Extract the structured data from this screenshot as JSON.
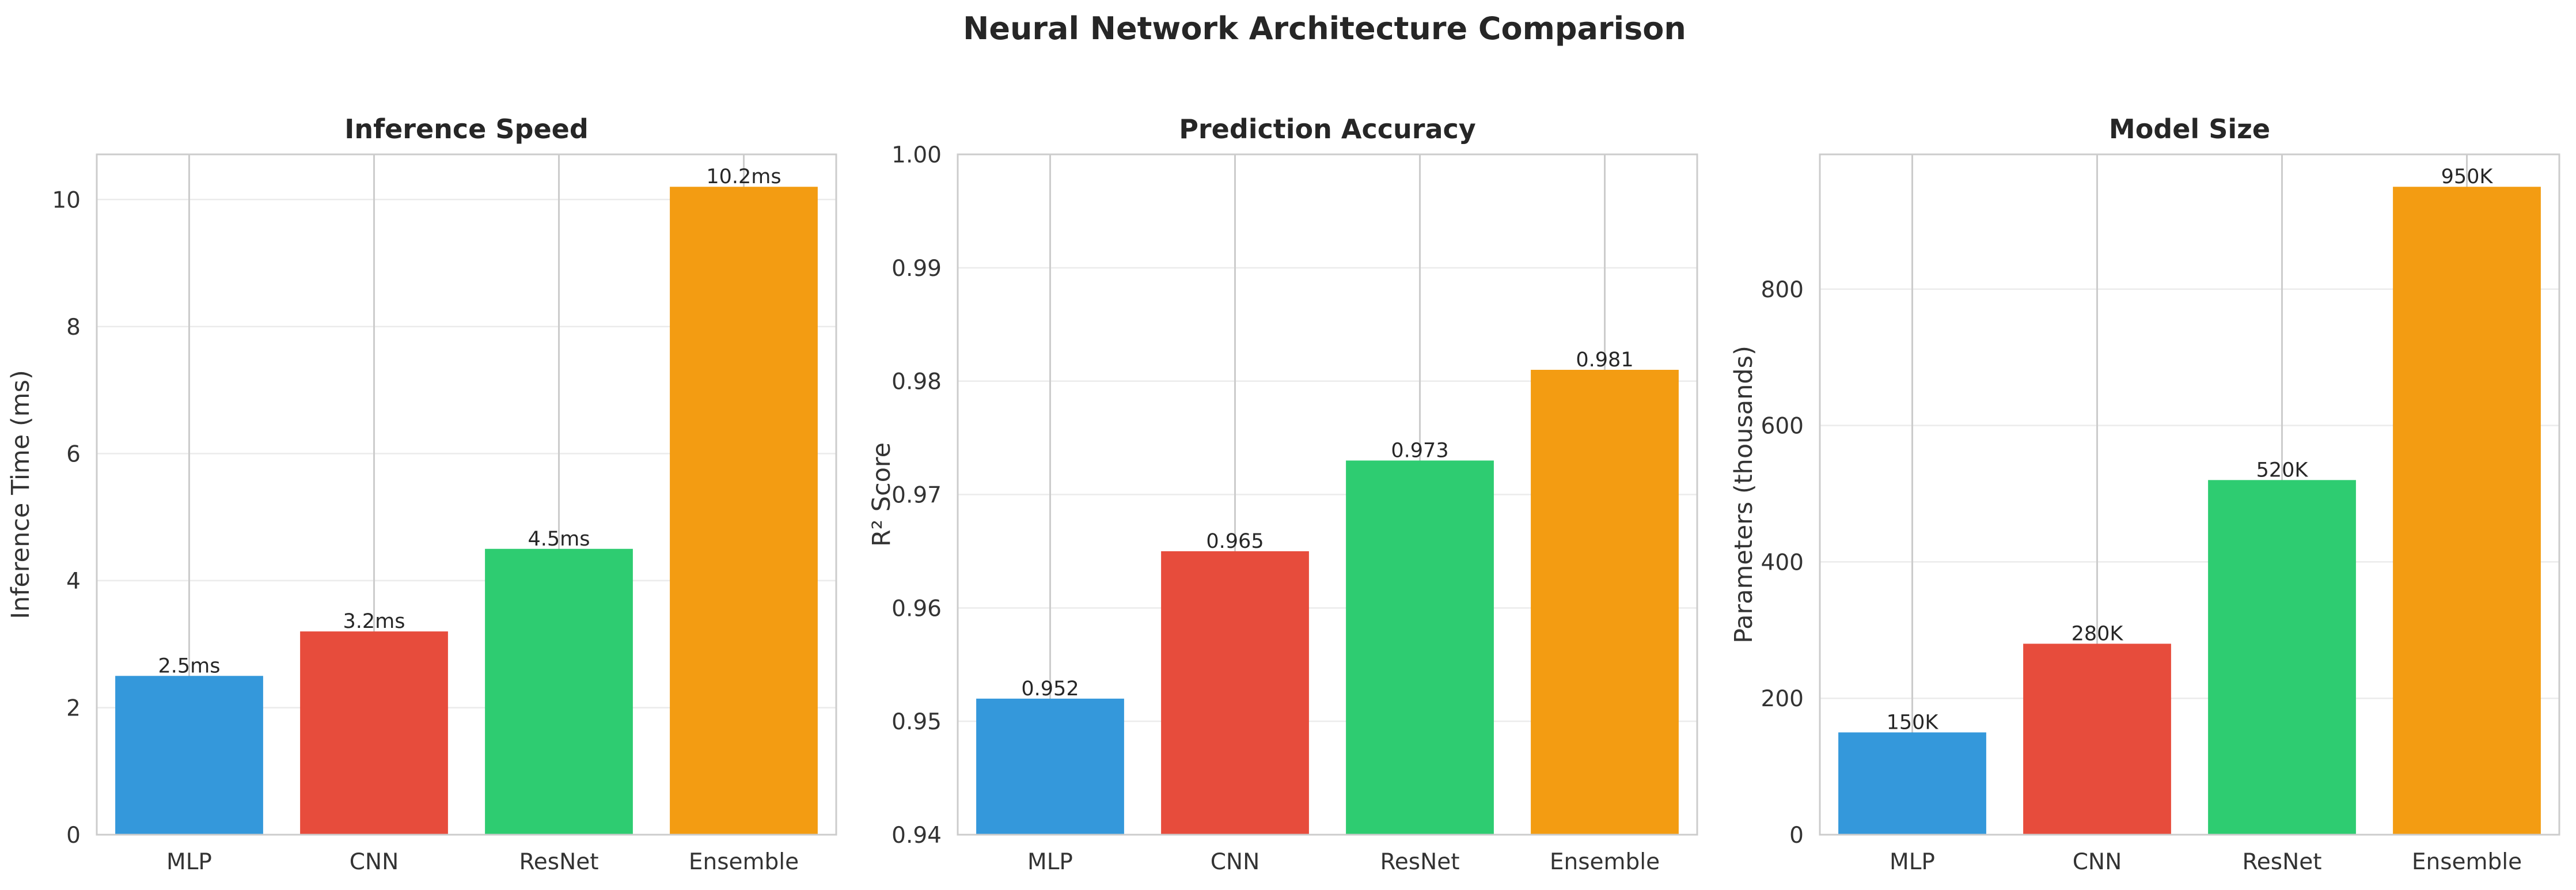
{
  "figure": {
    "suptitle": "Neural Network Architecture Comparison"
  },
  "chart_data": [
    {
      "type": "bar",
      "title": "Inference Speed",
      "xlabel": "",
      "ylabel": "Inference Time (ms)",
      "categories": [
        "MLP",
        "CNN",
        "ResNet",
        "Ensemble"
      ],
      "values": [
        2.5,
        3.2,
        4.5,
        10.2
      ],
      "value_labels": [
        "2.5ms",
        "3.2ms",
        "4.5ms",
        "10.2ms"
      ],
      "colors": [
        "#3498db",
        "#e74c3c",
        "#2ecc71",
        "#f39c12"
      ],
      "ylim": [
        0,
        10.71
      ],
      "yticks": [
        0,
        2,
        4,
        6,
        8,
        10
      ],
      "ytick_labels": [
        "0",
        "2",
        "4",
        "6",
        "8",
        "10"
      ],
      "grid": true
    },
    {
      "type": "bar",
      "title": "Prediction Accuracy",
      "xlabel": "",
      "ylabel": "R² Score",
      "categories": [
        "MLP",
        "CNN",
        "ResNet",
        "Ensemble"
      ],
      "values": [
        0.952,
        0.965,
        0.973,
        0.981
      ],
      "value_labels": [
        "0.952",
        "0.965",
        "0.973",
        "0.981"
      ],
      "colors": [
        "#3498db",
        "#e74c3c",
        "#2ecc71",
        "#f39c12"
      ],
      "ylim": [
        0.94,
        1.0
      ],
      "yticks": [
        0.94,
        0.95,
        0.96,
        0.97,
        0.98,
        0.99,
        1.0
      ],
      "ytick_labels": [
        "0.94",
        "0.95",
        "0.96",
        "0.97",
        "0.98",
        "0.99",
        "1.00"
      ],
      "grid": true
    },
    {
      "type": "bar",
      "title": "Model Size",
      "xlabel": "",
      "ylabel": "Parameters (thousands)",
      "categories": [
        "MLP",
        "CNN",
        "ResNet",
        "Ensemble"
      ],
      "values": [
        150,
        280,
        520,
        950
      ],
      "value_labels": [
        "150K",
        "280K",
        "520K",
        "950K"
      ],
      "colors": [
        "#3498db",
        "#e74c3c",
        "#2ecc71",
        "#f39c12"
      ],
      "ylim": [
        0,
        997.5
      ],
      "yticks": [
        0,
        200,
        400,
        600,
        800
      ],
      "ytick_labels": [
        "0",
        "200",
        "400",
        "600",
        "800"
      ],
      "grid": true
    }
  ]
}
